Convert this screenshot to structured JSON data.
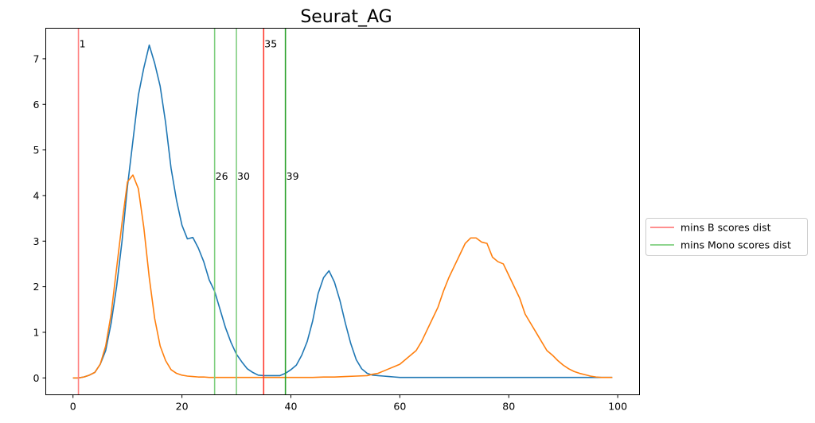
{
  "chart_data": {
    "type": "line",
    "title": "Seurat_AG",
    "xlabel": "",
    "ylabel": "",
    "xlim": [
      -5,
      104
    ],
    "ylim": [
      -0.37,
      7.67
    ],
    "xticks": [
      0,
      20,
      40,
      60,
      80,
      100
    ],
    "yticks": [
      0,
      1,
      2,
      3,
      4,
      5,
      6,
      7
    ],
    "grid": false,
    "legend_position": "right-center",
    "series": [
      {
        "color": "#1f77b4",
        "x": [
          0,
          1,
          2,
          3,
          4,
          5,
          6,
          7,
          8,
          9,
          10,
          11,
          12,
          13,
          14,
          15,
          16,
          17,
          18,
          19,
          20,
          21,
          22,
          23,
          24,
          25,
          26,
          27,
          28,
          29,
          30,
          31,
          32,
          33,
          34,
          35,
          36,
          37,
          38,
          39,
          40,
          41,
          42,
          43,
          44,
          45,
          46,
          47,
          48,
          49,
          50,
          51,
          52,
          53,
          54,
          55,
          56,
          57,
          58,
          59,
          60,
          65,
          70,
          75,
          80,
          85,
          90,
          95,
          99
        ],
        "y": [
          0,
          0,
          0.02,
          0.06,
          0.12,
          0.3,
          0.6,
          1.2,
          2.0,
          3.0,
          4.2,
          5.2,
          6.2,
          6.8,
          7.3,
          6.9,
          6.4,
          5.6,
          4.6,
          3.9,
          3.35,
          3.05,
          3.08,
          2.85,
          2.55,
          2.15,
          1.9,
          1.5,
          1.1,
          0.78,
          0.52,
          0.35,
          0.2,
          0.12,
          0.06,
          0.05,
          0.05,
          0.05,
          0.05,
          0.1,
          0.18,
          0.28,
          0.5,
          0.8,
          1.25,
          1.85,
          2.2,
          2.35,
          2.1,
          1.7,
          1.2,
          0.75,
          0.4,
          0.2,
          0.1,
          0.06,
          0.05,
          0.04,
          0.03,
          0.02,
          0.01,
          0.01,
          0.01,
          0.01,
          0.01,
          0.01,
          0.01,
          0.01,
          0.01
        ]
      },
      {
        "color": "#ff7f0e",
        "x": [
          0,
          1,
          2,
          3,
          4,
          5,
          6,
          7,
          8,
          9,
          10,
          11,
          12,
          13,
          14,
          15,
          16,
          17,
          18,
          19,
          20,
          21,
          22,
          23,
          24,
          25,
          26,
          28,
          30,
          32,
          34,
          36,
          38,
          40,
          42,
          44,
          46,
          48,
          50,
          52,
          54,
          55,
          56,
          57,
          58,
          59,
          60,
          61,
          62,
          63,
          64,
          65,
          66,
          67,
          68,
          69,
          70,
          71,
          72,
          73,
          74,
          75,
          76,
          77,
          78,
          79,
          80,
          81,
          82,
          83,
          84,
          85,
          86,
          87,
          88,
          89,
          90,
          91,
          92,
          93,
          94,
          95,
          96,
          97,
          98,
          99
        ],
        "y": [
          0,
          0,
          0.02,
          0.06,
          0.12,
          0.3,
          0.7,
          1.4,
          2.4,
          3.4,
          4.3,
          4.45,
          4.15,
          3.3,
          2.2,
          1.3,
          0.7,
          0.38,
          0.18,
          0.1,
          0.06,
          0.04,
          0.03,
          0.02,
          0.02,
          0.01,
          0.01,
          0.01,
          0.01,
          0.01,
          0.01,
          0.01,
          0.01,
          0.01,
          0.01,
          0.01,
          0.02,
          0.02,
          0.03,
          0.04,
          0.05,
          0.08,
          0.1,
          0.15,
          0.2,
          0.25,
          0.3,
          0.4,
          0.5,
          0.6,
          0.8,
          1.05,
          1.3,
          1.55,
          1.9,
          2.2,
          2.45,
          2.7,
          2.95,
          3.07,
          3.07,
          2.98,
          2.95,
          2.65,
          2.55,
          2.5,
          2.25,
          2.0,
          1.75,
          1.4,
          1.2,
          1.0,
          0.8,
          0.6,
          0.5,
          0.38,
          0.28,
          0.2,
          0.14,
          0.1,
          0.07,
          0.04,
          0.02,
          0.01,
          0.01,
          0.01
        ]
      }
    ],
    "vlines": [
      {
        "x": 1,
        "label": "1",
        "color": "#ff7f7f",
        "label_y": 7.32
      },
      {
        "x": 35,
        "label": "35",
        "color": "#ff3b2f",
        "label_y": 7.32
      },
      {
        "x": 26,
        "label": "26",
        "color": "#7fcf7f",
        "label_y": 4.42
      },
      {
        "x": 30,
        "label": "30",
        "color": "#7fcf7f",
        "label_y": 4.42
      },
      {
        "x": 39,
        "label": "39",
        "color": "#2ca02c",
        "label_y": 4.42
      }
    ],
    "legend": [
      {
        "label": "mins B scores dist",
        "color": "#ff7f7f"
      },
      {
        "label": "mins Mono scores dist",
        "color": "#7fcf7f"
      }
    ]
  }
}
